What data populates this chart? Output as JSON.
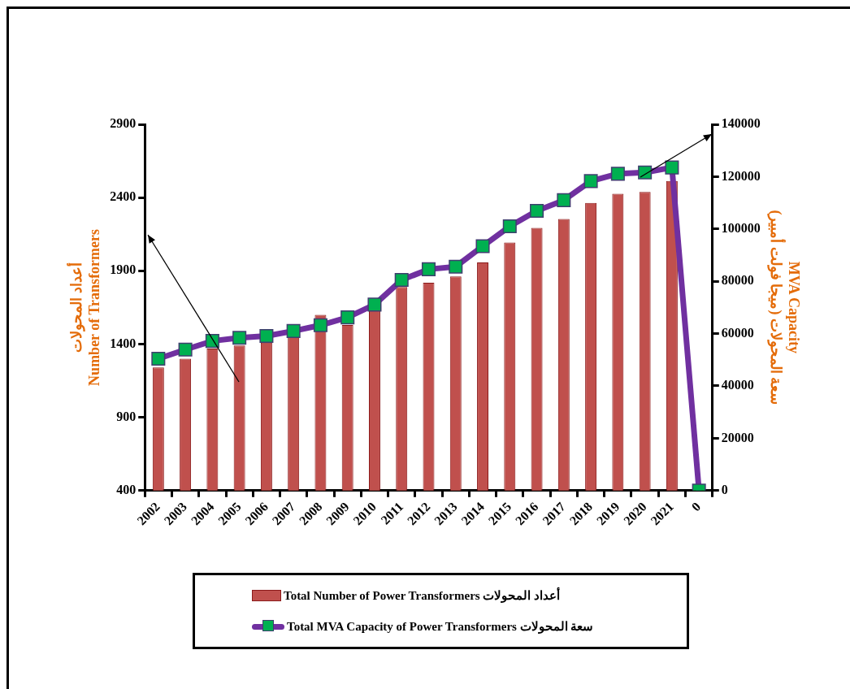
{
  "chart_data": {
    "type": "bar",
    "ylabel": "أعداد المحولات\nNumber of Transformers",
    "y2label": "MVA Capacity\nسعة المحولات (ميجا فولت أمبير)",
    "categories": [
      "2002",
      "2003",
      "2004",
      "2005",
      "2006",
      "2007",
      "2008",
      "2009",
      "2010",
      "2011",
      "2012",
      "2013",
      "2014",
      "2015",
      "2016",
      "2017",
      "2018",
      "2019",
      "2020",
      "2021",
      "0"
    ],
    "series": [
      {
        "name": "Total Number of Power Transformers أعداد المحولات",
        "color": "#c0504d",
        "values": [
          1240,
          1300,
          1370,
          1390,
          1410,
          1450,
          1600,
          1530,
          1640,
          1790,
          1818,
          1861,
          1957,
          2093,
          2193,
          2254,
          2363,
          2426,
          2439,
          2513,
          null
        ]
      },
      {
        "name": "Total MVA Capacity of Power Transformers سعة المحولات",
        "type": "line",
        "axis": "y2",
        "color": "#7030a0",
        "marker": "square",
        "values": [
          50400,
          53900,
          57200,
          58400,
          59100,
          61000,
          63200,
          66200,
          71100,
          80500,
          84600,
          85600,
          93400,
          101000,
          106900,
          111000,
          118300,
          121100,
          121600,
          123500,
          0
        ]
      }
    ],
    "ylim": [
      400,
      2900
    ],
    "yticks": [
      400,
      900,
      1400,
      1900,
      2400,
      2900
    ],
    "y2lim": [
      0,
      140000
    ],
    "y2ticks": [
      0,
      20000,
      40000,
      60000,
      80000,
      100000,
      120000,
      140000
    ],
    "grid": false,
    "legend": "bottom"
  }
}
